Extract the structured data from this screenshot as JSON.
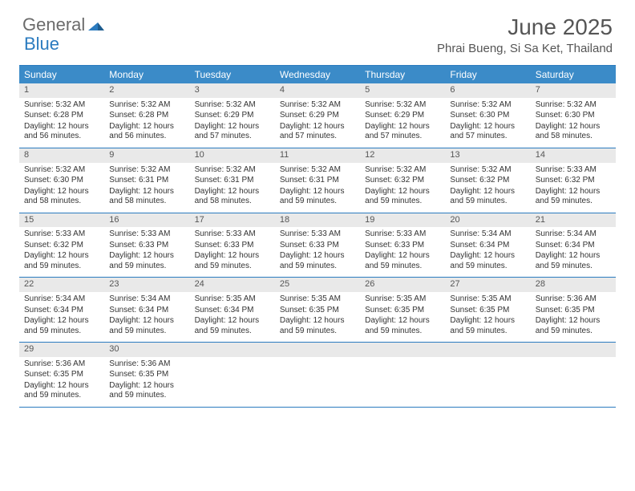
{
  "logo": {
    "text_general": "General",
    "text_blue": "Blue"
  },
  "title": "June 2025",
  "location": "Phrai Bueng, Si Sa Ket, Thailand",
  "colors": {
    "header_bg": "#3b8bc8",
    "border": "#2b7bbf",
    "daynum_bg": "#e9e9e9",
    "text": "#333333",
    "title": "#555555"
  },
  "day_headers": [
    "Sunday",
    "Monday",
    "Tuesday",
    "Wednesday",
    "Thursday",
    "Friday",
    "Saturday"
  ],
  "weeks": [
    [
      {
        "num": "1",
        "sunrise": "Sunrise: 5:32 AM",
        "sunset": "Sunset: 6:28 PM",
        "daylight": "Daylight: 12 hours and 56 minutes."
      },
      {
        "num": "2",
        "sunrise": "Sunrise: 5:32 AM",
        "sunset": "Sunset: 6:28 PM",
        "daylight": "Daylight: 12 hours and 56 minutes."
      },
      {
        "num": "3",
        "sunrise": "Sunrise: 5:32 AM",
        "sunset": "Sunset: 6:29 PM",
        "daylight": "Daylight: 12 hours and 57 minutes."
      },
      {
        "num": "4",
        "sunrise": "Sunrise: 5:32 AM",
        "sunset": "Sunset: 6:29 PM",
        "daylight": "Daylight: 12 hours and 57 minutes."
      },
      {
        "num": "5",
        "sunrise": "Sunrise: 5:32 AM",
        "sunset": "Sunset: 6:29 PM",
        "daylight": "Daylight: 12 hours and 57 minutes."
      },
      {
        "num": "6",
        "sunrise": "Sunrise: 5:32 AM",
        "sunset": "Sunset: 6:30 PM",
        "daylight": "Daylight: 12 hours and 57 minutes."
      },
      {
        "num": "7",
        "sunrise": "Sunrise: 5:32 AM",
        "sunset": "Sunset: 6:30 PM",
        "daylight": "Daylight: 12 hours and 58 minutes."
      }
    ],
    [
      {
        "num": "8",
        "sunrise": "Sunrise: 5:32 AM",
        "sunset": "Sunset: 6:30 PM",
        "daylight": "Daylight: 12 hours and 58 minutes."
      },
      {
        "num": "9",
        "sunrise": "Sunrise: 5:32 AM",
        "sunset": "Sunset: 6:31 PM",
        "daylight": "Daylight: 12 hours and 58 minutes."
      },
      {
        "num": "10",
        "sunrise": "Sunrise: 5:32 AM",
        "sunset": "Sunset: 6:31 PM",
        "daylight": "Daylight: 12 hours and 58 minutes."
      },
      {
        "num": "11",
        "sunrise": "Sunrise: 5:32 AM",
        "sunset": "Sunset: 6:31 PM",
        "daylight": "Daylight: 12 hours and 59 minutes."
      },
      {
        "num": "12",
        "sunrise": "Sunrise: 5:32 AM",
        "sunset": "Sunset: 6:32 PM",
        "daylight": "Daylight: 12 hours and 59 minutes."
      },
      {
        "num": "13",
        "sunrise": "Sunrise: 5:32 AM",
        "sunset": "Sunset: 6:32 PM",
        "daylight": "Daylight: 12 hours and 59 minutes."
      },
      {
        "num": "14",
        "sunrise": "Sunrise: 5:33 AM",
        "sunset": "Sunset: 6:32 PM",
        "daylight": "Daylight: 12 hours and 59 minutes."
      }
    ],
    [
      {
        "num": "15",
        "sunrise": "Sunrise: 5:33 AM",
        "sunset": "Sunset: 6:32 PM",
        "daylight": "Daylight: 12 hours and 59 minutes."
      },
      {
        "num": "16",
        "sunrise": "Sunrise: 5:33 AM",
        "sunset": "Sunset: 6:33 PM",
        "daylight": "Daylight: 12 hours and 59 minutes."
      },
      {
        "num": "17",
        "sunrise": "Sunrise: 5:33 AM",
        "sunset": "Sunset: 6:33 PM",
        "daylight": "Daylight: 12 hours and 59 minutes."
      },
      {
        "num": "18",
        "sunrise": "Sunrise: 5:33 AM",
        "sunset": "Sunset: 6:33 PM",
        "daylight": "Daylight: 12 hours and 59 minutes."
      },
      {
        "num": "19",
        "sunrise": "Sunrise: 5:33 AM",
        "sunset": "Sunset: 6:33 PM",
        "daylight": "Daylight: 12 hours and 59 minutes."
      },
      {
        "num": "20",
        "sunrise": "Sunrise: 5:34 AM",
        "sunset": "Sunset: 6:34 PM",
        "daylight": "Daylight: 12 hours and 59 minutes."
      },
      {
        "num": "21",
        "sunrise": "Sunrise: 5:34 AM",
        "sunset": "Sunset: 6:34 PM",
        "daylight": "Daylight: 12 hours and 59 minutes."
      }
    ],
    [
      {
        "num": "22",
        "sunrise": "Sunrise: 5:34 AM",
        "sunset": "Sunset: 6:34 PM",
        "daylight": "Daylight: 12 hours and 59 minutes."
      },
      {
        "num": "23",
        "sunrise": "Sunrise: 5:34 AM",
        "sunset": "Sunset: 6:34 PM",
        "daylight": "Daylight: 12 hours and 59 minutes."
      },
      {
        "num": "24",
        "sunrise": "Sunrise: 5:35 AM",
        "sunset": "Sunset: 6:34 PM",
        "daylight": "Daylight: 12 hours and 59 minutes."
      },
      {
        "num": "25",
        "sunrise": "Sunrise: 5:35 AM",
        "sunset": "Sunset: 6:35 PM",
        "daylight": "Daylight: 12 hours and 59 minutes."
      },
      {
        "num": "26",
        "sunrise": "Sunrise: 5:35 AM",
        "sunset": "Sunset: 6:35 PM",
        "daylight": "Daylight: 12 hours and 59 minutes."
      },
      {
        "num": "27",
        "sunrise": "Sunrise: 5:35 AM",
        "sunset": "Sunset: 6:35 PM",
        "daylight": "Daylight: 12 hours and 59 minutes."
      },
      {
        "num": "28",
        "sunrise": "Sunrise: 5:36 AM",
        "sunset": "Sunset: 6:35 PM",
        "daylight": "Daylight: 12 hours and 59 minutes."
      }
    ],
    [
      {
        "num": "29",
        "sunrise": "Sunrise: 5:36 AM",
        "sunset": "Sunset: 6:35 PM",
        "daylight": "Daylight: 12 hours and 59 minutes."
      },
      {
        "num": "30",
        "sunrise": "Sunrise: 5:36 AM",
        "sunset": "Sunset: 6:35 PM",
        "daylight": "Daylight: 12 hours and 59 minutes."
      },
      null,
      null,
      null,
      null,
      null
    ]
  ]
}
